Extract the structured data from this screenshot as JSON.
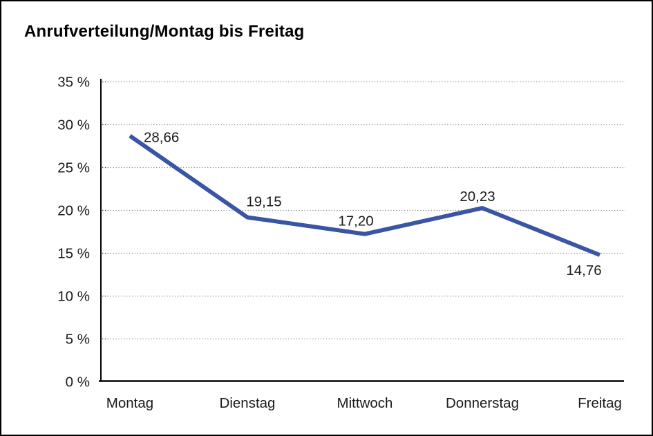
{
  "title": "Anrufverteilung/Montag bis Freitag",
  "chart_data": {
    "type": "line",
    "title": "Anrufverteilung/Montag bis Freitag",
    "categories": [
      "Montag",
      "Dienstag",
      "Mittwoch",
      "Donnerstag",
      "Freitag"
    ],
    "series": [
      {
        "name": "Anrufverteilung",
        "values": [
          28.66,
          19.15,
          17.2,
          20.23,
          14.76
        ],
        "value_labels": [
          "28,66",
          "19,15",
          "17,20",
          "20,23",
          "14,76"
        ]
      }
    ],
    "xlabel": "",
    "ylabel": "",
    "ylim": [
      0,
      35
    ],
    "ytick_step": 5,
    "ytick_suffix": " %",
    "grid": "horizontal-dotted",
    "legend": "none",
    "colors": {
      "line": "#3A55A4",
      "grid": "#909090",
      "tick": "#444444",
      "axis": "#000000",
      "text": "#1a1a1a"
    }
  }
}
